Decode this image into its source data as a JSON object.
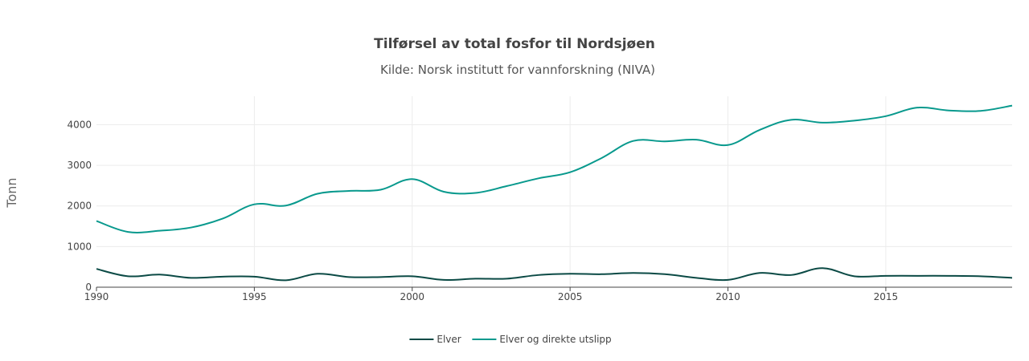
{
  "chart_data": {
    "type": "line",
    "title": "Tilførsel av total fosfor til Nordsjøen",
    "subtitle": "Kilde: Norsk institutt for vannforskning (NIVA)",
    "xlabel": "",
    "ylabel": "Tonn",
    "xlim": [
      1990,
      2019
    ],
    "ylim": [
      0,
      4700
    ],
    "x_ticks": [
      1990,
      1995,
      2000,
      2005,
      2010,
      2015
    ],
    "y_ticks": [
      0,
      1000,
      2000,
      3000,
      4000
    ],
    "grid": true,
    "legend_position": "bottom",
    "x": [
      1990,
      1991,
      1992,
      1993,
      1994,
      1995,
      1996,
      1997,
      1998,
      1999,
      2000,
      2001,
      2002,
      2003,
      2004,
      2005,
      2006,
      2007,
      2008,
      2009,
      2010,
      2011,
      2012,
      2013,
      2014,
      2015,
      2016,
      2017,
      2018,
      2019
    ],
    "series": [
      {
        "name": "Elver",
        "color": "#0b4a45",
        "values": [
          450,
          270,
          310,
          230,
          260,
          260,
          170,
          330,
          250,
          250,
          270,
          180,
          210,
          210,
          300,
          330,
          320,
          350,
          320,
          230,
          180,
          350,
          300,
          470,
          270,
          280,
          280,
          280,
          270,
          230
        ]
      },
      {
        "name": "Elver og direkte utslipp",
        "color": "#08998d",
        "values": [
          1630,
          1360,
          1390,
          1470,
          1690,
          2040,
          2010,
          2300,
          2370,
          2400,
          2660,
          2350,
          2320,
          2490,
          2680,
          2830,
          3180,
          3600,
          3590,
          3630,
          3500,
          3870,
          4120,
          4050,
          4100,
          4210,
          4420,
          4350,
          4340,
          4470
        ]
      }
    ]
  }
}
